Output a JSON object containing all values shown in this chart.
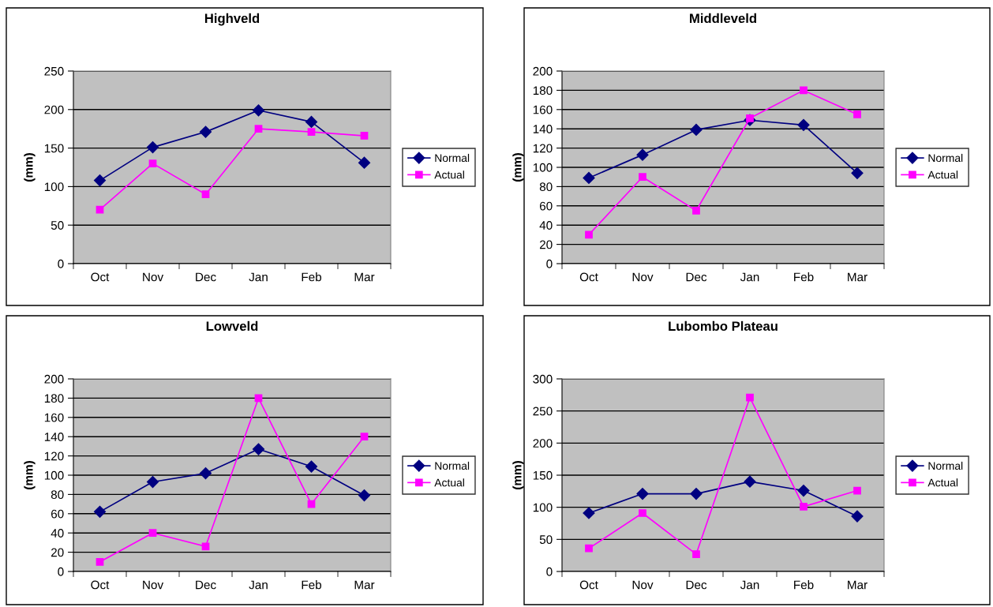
{
  "chart_data": [
    {
      "type": "line",
      "title": "Highveld",
      "ylabel": "(mm)",
      "categories": [
        "Oct",
        "Nov",
        "Dec",
        "Jan",
        "Feb",
        "Mar"
      ],
      "ylim": [
        0,
        250
      ],
      "yticks": [
        0,
        50,
        100,
        150,
        200,
        250
      ],
      "grid": "y",
      "legend": "right",
      "series": [
        {
          "name": "Normal",
          "color": "#000080",
          "marker": "diamond",
          "values": [
            108,
            151,
            171,
            199,
            184,
            131
          ]
        },
        {
          "name": "Actual",
          "color": "#ff00ff",
          "marker": "square",
          "values": [
            70,
            130,
            90,
            175,
            171,
            166
          ]
        }
      ]
    },
    {
      "type": "line",
      "title": "Middleveld",
      "ylabel": "(mm)",
      "categories": [
        "Oct",
        "Nov",
        "Dec",
        "Jan",
        "Feb",
        "Mar"
      ],
      "ylim": [
        0,
        200
      ],
      "yticks": [
        0,
        20,
        40,
        60,
        80,
        100,
        120,
        140,
        160,
        180,
        200
      ],
      "grid": "y",
      "legend": "right",
      "series": [
        {
          "name": "Normal",
          "color": "#000080",
          "marker": "diamond",
          "values": [
            89,
            113,
            139,
            149,
            144,
            94
          ]
        },
        {
          "name": "Actual",
          "color": "#ff00ff",
          "marker": "square",
          "values": [
            30,
            90,
            55,
            151,
            180,
            155
          ]
        }
      ]
    },
    {
      "type": "line",
      "title": "Lowveld",
      "ylabel": "(mm)",
      "categories": [
        "Oct",
        "Nov",
        "Dec",
        "Jan",
        "Feb",
        "Mar"
      ],
      "ylim": [
        0,
        200
      ],
      "yticks": [
        0,
        20,
        40,
        60,
        80,
        100,
        120,
        140,
        160,
        180,
        200
      ],
      "grid": "y",
      "legend": "right",
      "series": [
        {
          "name": "Normal",
          "color": "#000080",
          "marker": "diamond",
          "values": [
            62,
            93,
            102,
            127,
            109,
            79
          ]
        },
        {
          "name": "Actual",
          "color": "#ff00ff",
          "marker": "square",
          "values": [
            10,
            40,
            26,
            180,
            70,
            140
          ]
        }
      ]
    },
    {
      "type": "line",
      "title": "Lubombo Plateau",
      "ylabel": "(mm)",
      "categories": [
        "Oct",
        "Nov",
        "Dec",
        "Jan",
        "Feb",
        "Mar"
      ],
      "ylim": [
        0,
        300
      ],
      "yticks": [
        0,
        50,
        100,
        150,
        200,
        250,
        300
      ],
      "grid": "y",
      "legend": "right",
      "series": [
        {
          "name": "Normal",
          "color": "#000080",
          "marker": "diamond",
          "values": [
            91,
            121,
            121,
            140,
            126,
            86
          ]
        },
        {
          "name": "Actual",
          "color": "#ff00ff",
          "marker": "square",
          "values": [
            36,
            91,
            27,
            271,
            101,
            126
          ]
        }
      ]
    }
  ]
}
